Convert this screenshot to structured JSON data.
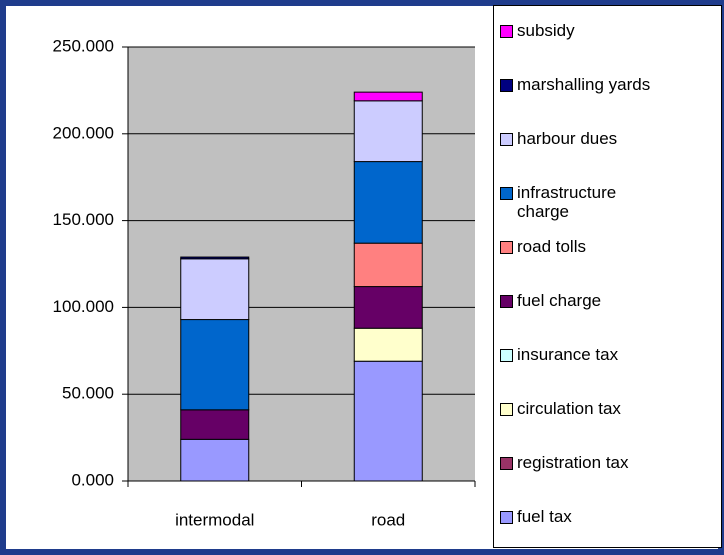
{
  "chart_data": {
    "type": "stacked_bar",
    "categories": [
      "intermodal",
      "road"
    ],
    "series": [
      {
        "name": "fuel tax",
        "color": "#9999ff",
        "values": [
          24,
          69
        ]
      },
      {
        "name": "registration tax",
        "color": "#993366",
        "values": [
          0,
          0
        ]
      },
      {
        "name": "circulation tax",
        "color": "#ffffcc",
        "values": [
          0,
          19
        ]
      },
      {
        "name": "insurance tax",
        "color": "#ccffff",
        "values": [
          0,
          0
        ]
      },
      {
        "name": "fuel charge",
        "color": "#660066",
        "values": [
          17,
          24
        ]
      },
      {
        "name": "road tolls",
        "color": "#ff8080",
        "values": [
          0,
          25
        ]
      },
      {
        "name": "infrastructure charge",
        "color": "#0066cc",
        "values": [
          52,
          47
        ]
      },
      {
        "name": "harbour dues",
        "color": "#ccccff",
        "values": [
          35,
          35
        ]
      },
      {
        "name": "marshalling yards",
        "color": "#000080",
        "values": [
          1,
          0
        ]
      },
      {
        "name": "subsidy",
        "color": "#ff00ff",
        "values": [
          0,
          5
        ]
      }
    ],
    "ylim": [
      0,
      250
    ],
    "yticks": [
      {
        "value": 0,
        "label": "0.000"
      },
      {
        "value": 50,
        "label": "50.000"
      },
      {
        "value": 100,
        "label": "100.000"
      },
      {
        "value": 150,
        "label": "150.000"
      },
      {
        "value": 200,
        "label": "200.000"
      },
      {
        "value": 250,
        "label": "250.000"
      }
    ],
    "grid": true,
    "plot_background": "#c0c0c0"
  }
}
